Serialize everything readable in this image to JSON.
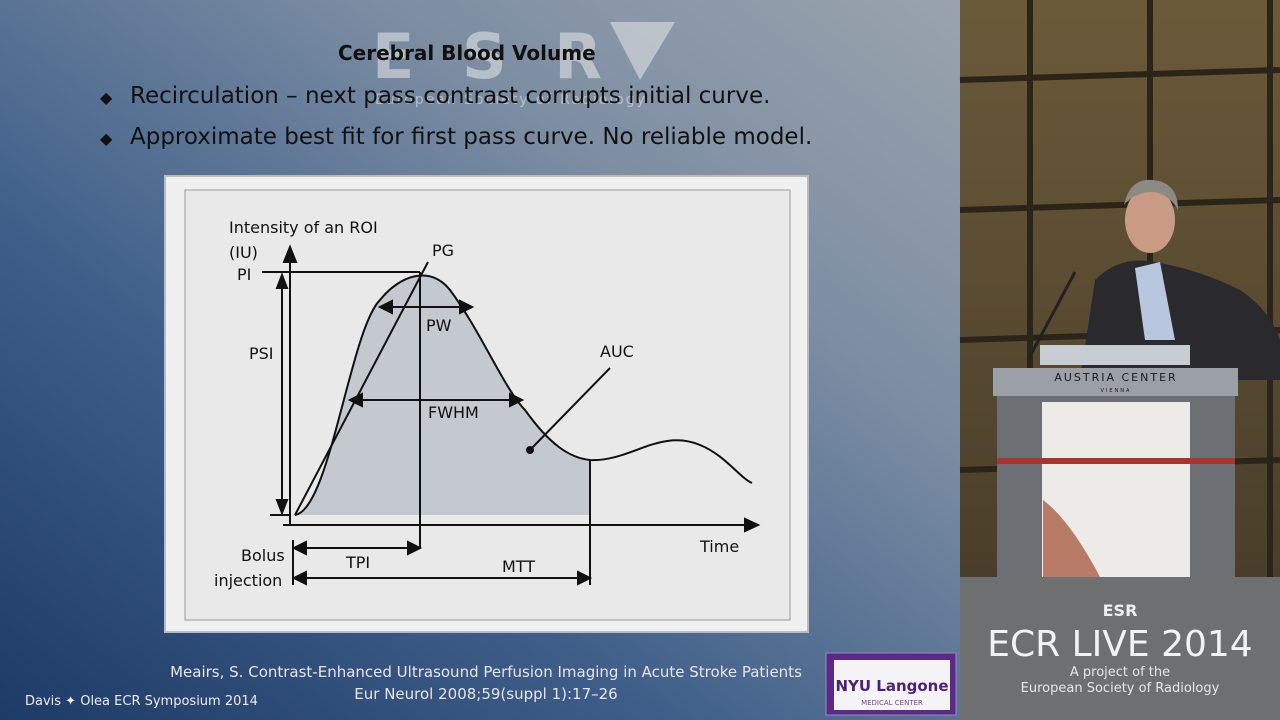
{
  "slide": {
    "title": "Cerebral Blood Volume",
    "bullets": [
      "Recirculation – next pass contrast corrupts initial curve.",
      "Approximate best fit for first pass curve.  No reliable model."
    ],
    "watermark": {
      "logo": "ESR",
      "caption": "European Society of Radiology"
    },
    "figure": {
      "y_axis_label": [
        "Intensity of an ROI",
        "(IU)"
      ],
      "PG": "PG",
      "PI": "PI",
      "PSI": "PSI",
      "PW": "PW",
      "AUC": "AUC",
      "FWHM": "FWHM",
      "bolus": [
        "Bolus",
        "injection"
      ],
      "TPI": "TPI",
      "MTT": "MTT",
      "x_axis_label": "Time"
    },
    "citation": [
      "Meairs, S. Contrast-Enhanced  Ultrasound  Perfusion  Imaging in Acute Stroke Patients",
      "Eur Neurol 2008;59(suppl 1):17–26"
    ],
    "footer": "Davis ✦ Olea ECR Symposium 2014",
    "sponsor": {
      "name": "NYU Langone",
      "sub": "MEDICAL CENTER"
    }
  },
  "video": {
    "lectern": {
      "name": "AUSTRIA CENTER",
      "city": "VIENNA"
    },
    "banner": {
      "logo": "ESR",
      "title": "ECR LIVE 2014",
      "line1": "A project of the",
      "line2": "European Society of Radiology"
    }
  }
}
